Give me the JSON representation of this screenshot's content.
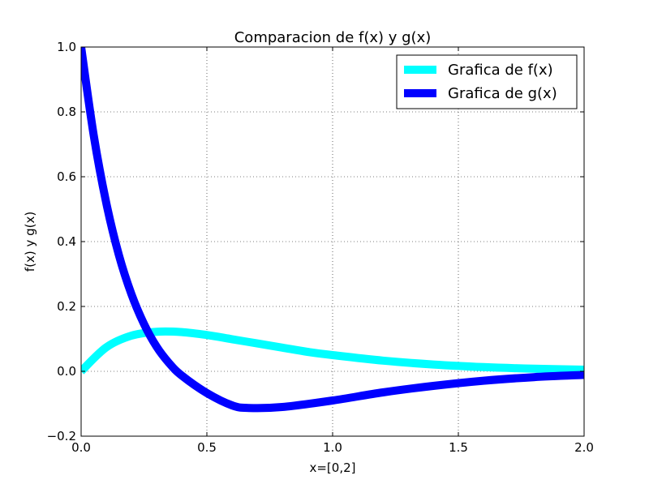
{
  "chart_data": {
    "type": "line",
    "title": "Comparacion de f(x) y g(x)",
    "xlabel": "x=[0,2]",
    "ylabel": "f(x) y g(x)",
    "xlim": [
      0,
      2
    ],
    "ylim": [
      -0.2,
      1.0
    ],
    "xticks": [
      0.0,
      0.5,
      1.0,
      1.5,
      2.0
    ],
    "xtick_labels": [
      "0.0",
      "0.5",
      "1.0",
      "1.5",
      "2.0"
    ],
    "yticks": [
      -0.2,
      0.0,
      0.2,
      0.4,
      0.6,
      0.8,
      1.0
    ],
    "ytick_labels": [
      "−0.2",
      "0.0",
      "0.2",
      "0.4",
      "0.6",
      "0.8",
      "1.0"
    ],
    "grid": true,
    "legend_position": "top-right",
    "series": [
      {
        "name": "Grafica de f(x)",
        "color": "#00ffff",
        "x": [
          0.0,
          0.1,
          0.2,
          0.3,
          0.4,
          0.5,
          0.6,
          0.7,
          0.8,
          0.9,
          1.0,
          1.2,
          1.4,
          1.6,
          1.8,
          2.0
        ],
        "y": [
          0.0,
          0.074,
          0.11,
          0.122,
          0.121,
          0.112,
          0.099,
          0.086,
          0.073,
          0.06,
          0.05,
          0.033,
          0.021,
          0.013,
          0.008,
          0.005
        ]
      },
      {
        "name": "Grafica de g(x)",
        "color": "#0000ff",
        "x": [
          0.0,
          0.05,
          0.1,
          0.15,
          0.2,
          0.25,
          0.3,
          0.35,
          0.4,
          0.5,
          0.6,
          0.667,
          0.8,
          1.0,
          1.2,
          1.4,
          1.6,
          1.8,
          2.0
        ],
        "y": [
          1.0,
          0.728,
          0.519,
          0.359,
          0.238,
          0.146,
          0.076,
          0.025,
          -0.013,
          -0.067,
          -0.105,
          -0.113,
          -0.11,
          -0.09,
          -0.065,
          -0.045,
          -0.029,
          -0.018,
          -0.011
        ]
      }
    ]
  }
}
